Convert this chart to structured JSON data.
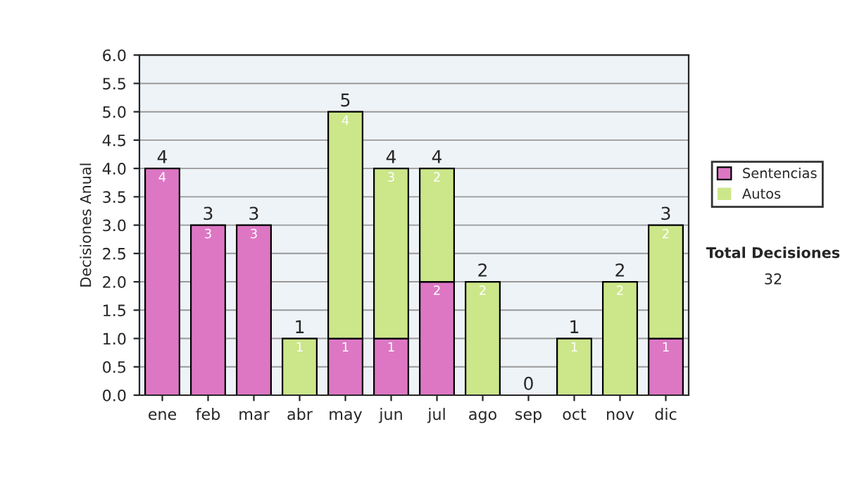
{
  "chart_data": {
    "type": "bar",
    "stacked": true,
    "ylabel": "Decisiones Anual",
    "categories": [
      "ene",
      "feb",
      "mar",
      "abr",
      "may",
      "jun",
      "jul",
      "ago",
      "sep",
      "oct",
      "nov",
      "dic"
    ],
    "series": [
      {
        "name": "Sentencias",
        "color": "#dd77c4",
        "values": [
          4,
          3,
          3,
          0,
          1,
          1,
          2,
          0,
          0,
          0,
          0,
          1
        ],
        "value_labels": [
          "4",
          "3",
          "3",
          null,
          "1",
          "1",
          "2",
          null,
          null,
          null,
          null,
          "1"
        ]
      },
      {
        "name": "Autos",
        "color": "#cce68a",
        "values": [
          0,
          0,
          0,
          1,
          4,
          3,
          2,
          2,
          0,
          1,
          2,
          2
        ],
        "value_labels": [
          null,
          null,
          null,
          "1",
          "4",
          "3",
          "2",
          "2",
          null,
          "1",
          "2",
          "2"
        ]
      }
    ],
    "totals": [
      "4",
      "3",
      "3",
      "1",
      "5",
      "4",
      "4",
      "2",
      "0",
      "1",
      "2",
      "3"
    ],
    "ylim": [
      0,
      6
    ],
    "yticks": [
      {
        "value": 0,
        "label": "0.0"
      },
      {
        "value": 0.5,
        "label": "0.5"
      },
      {
        "value": 1,
        "label": "1.0"
      },
      {
        "value": 1.5,
        "label": "1.5"
      },
      {
        "value": 2,
        "label": "2.0"
      },
      {
        "value": 2.5,
        "label": "2.5"
      },
      {
        "value": 3,
        "label": "3.0"
      },
      {
        "value": 3.5,
        "label": "3.5"
      },
      {
        "value": 4,
        "label": "4.0"
      },
      {
        "value": 4.5,
        "label": "4.5"
      },
      {
        "value": 5,
        "label": "5.0"
      },
      {
        "value": 5.5,
        "label": "5.5"
      },
      {
        "value": 6,
        "label": "6.0"
      }
    ],
    "grid": "y",
    "legend": "right",
    "annotations": [
      "Total Decisiones",
      "32"
    ]
  }
}
